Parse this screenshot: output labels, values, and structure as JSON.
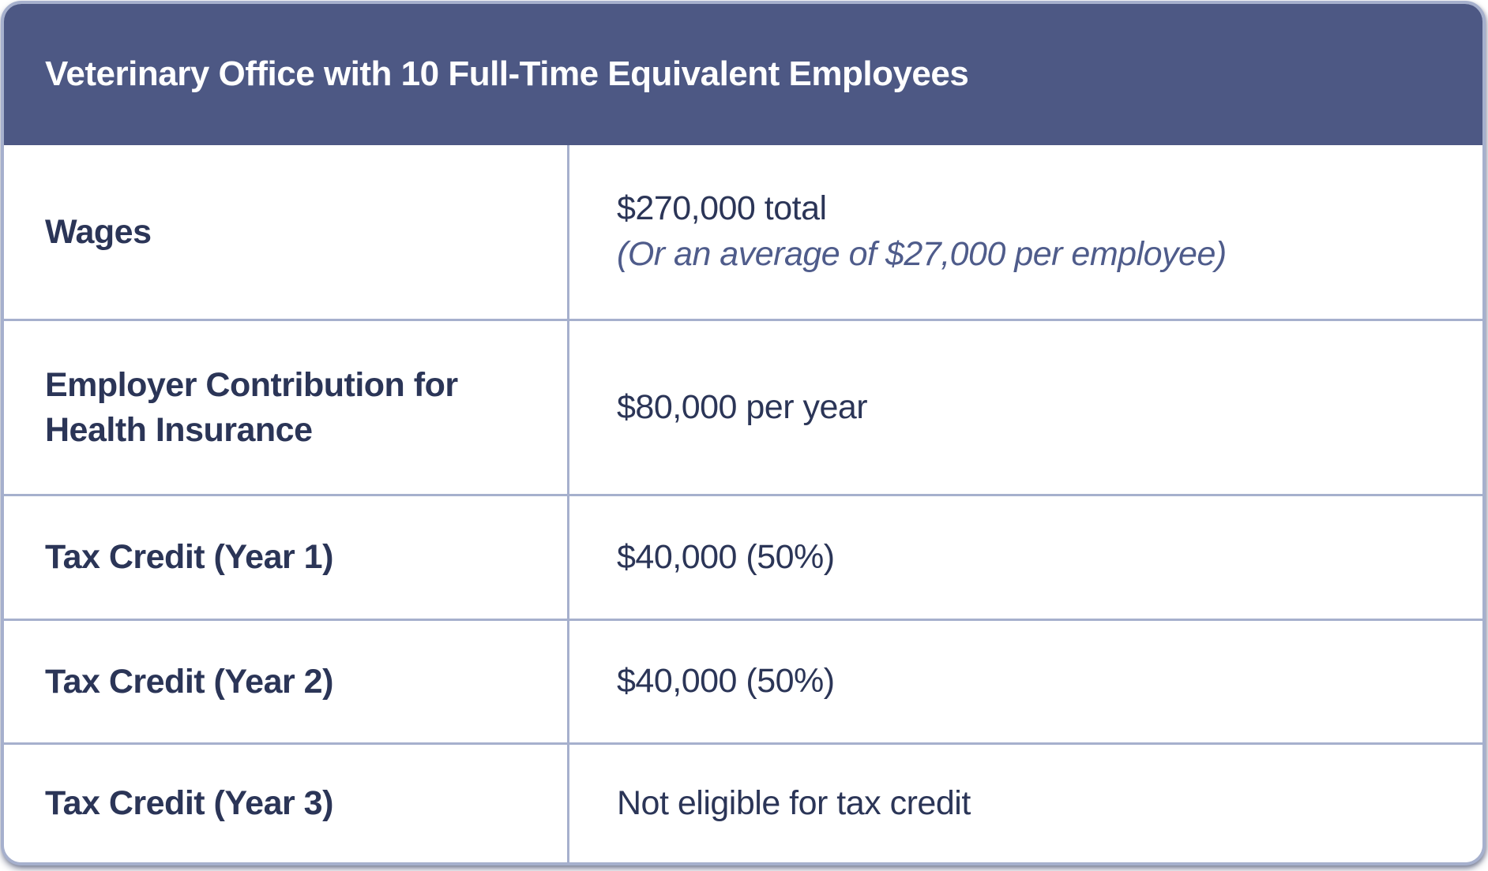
{
  "table": {
    "title": "Veterinary Office with 10 Full-Time Equivalent Employees",
    "rows": [
      {
        "label": "Wages",
        "value": "$270,000 total",
        "note": "(Or an average of $27,000 per employee)"
      },
      {
        "label": "Employer Contribution for Health Insurance",
        "value": "$80,000 per year"
      },
      {
        "label": "Tax Credit (Year 1)",
        "value": "$40,000 (50%)"
      },
      {
        "label": "Tax Credit (Year 2)",
        "value": "$40,000 (50%)"
      },
      {
        "label": "Tax Credit (Year 3)",
        "value": "Not eligible for tax credit"
      }
    ],
    "colors": {
      "header_background": "#4d5884",
      "border": "#a6b0cd",
      "title_text": "#ffffff",
      "body_text": "#2b3557",
      "note_text": "#4f5c8b",
      "body_background": "#ffffff"
    }
  }
}
